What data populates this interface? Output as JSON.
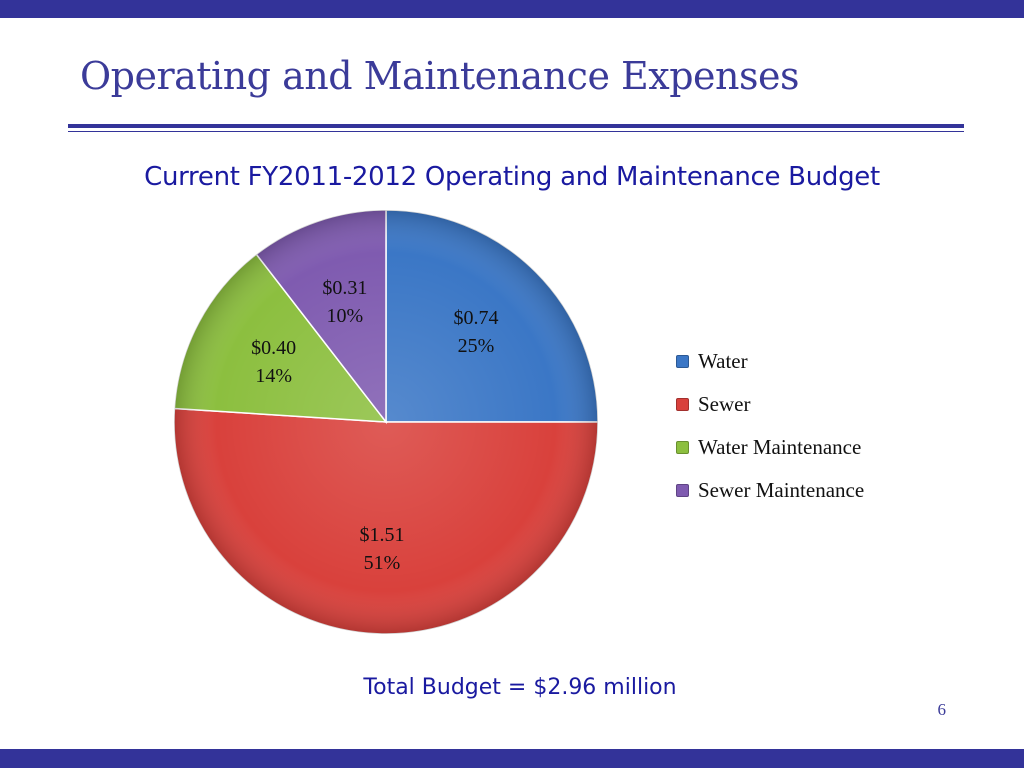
{
  "slide": {
    "title": "Operating and Maintenance Expenses",
    "total": "Total Budget = $2.96 million",
    "page_number": "6"
  },
  "colors": {
    "brand_bar": "#333399",
    "title_text": "#3b3b99",
    "chart_title_text": "#1a1aa0"
  },
  "chart_data": {
    "type": "pie",
    "title": "Current FY2011-2012 Operating and Maintenance Budget",
    "legend_position": "right",
    "slices": [
      {
        "name": "Water",
        "value": 0.74,
        "percent": 25,
        "value_label": "$0.74",
        "percent_label": "25%",
        "color": "#3b77c6"
      },
      {
        "name": "Sewer",
        "value": 1.51,
        "percent": 51,
        "value_label": "$1.51",
        "percent_label": "51%",
        "color": "#d9413c"
      },
      {
        "name": "Water Maintenance",
        "value": 0.4,
        "percent": 14,
        "value_label": "$0.40",
        "percent_label": "14%",
        "color": "#8cbf3f"
      },
      {
        "name": "Sewer Maintenance",
        "value": 0.31,
        "percent": 10,
        "value_label": "$0.31",
        "percent_label": "10%",
        "color": "#7f5bb0"
      }
    ]
  }
}
